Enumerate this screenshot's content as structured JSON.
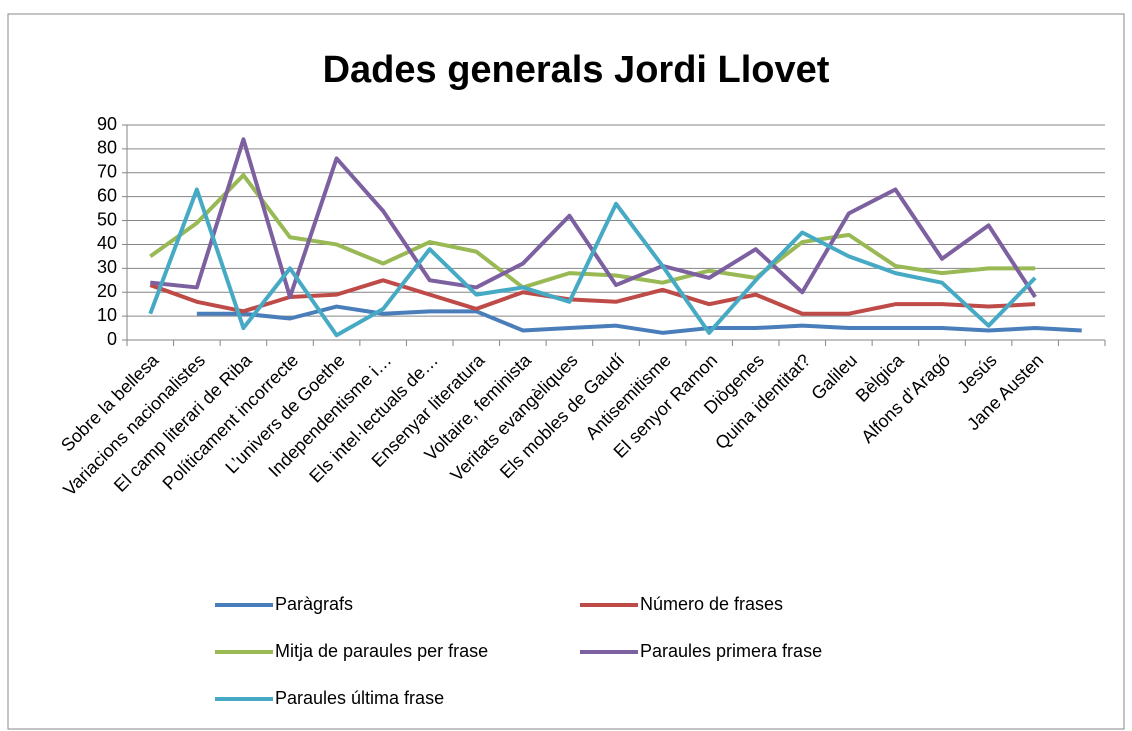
{
  "chart_data": {
    "type": "line",
    "title": "Dades generals Jordi Llovet",
    "categories": [
      "Sobre la bellesa",
      "Variacions nacionalistes",
      "El camp literari de Riba",
      "Políticament incorrecte",
      "L’univers de Goethe",
      "Independentisme i…",
      "Els intel·lectuals de…",
      "Ensenyar literatura",
      "Voltaire, feminista",
      "Veritats evangèliques",
      "Els mobles de Gaudí",
      "Antisemitisme",
      "El senyor Ramon",
      "Diògenes",
      "Quina identitat?",
      "Galileu",
      "Bèlgica",
      "Alfons d’Aragó",
      "Jesús",
      "Jane Austen",
      null
    ],
    "series": [
      {
        "name": "Paràgrafs",
        "color": "#4a7ebb",
        "values": [
          null,
          11,
          11,
          9,
          14,
          11,
          12,
          12,
          4,
          5,
          6,
          3,
          5,
          5,
          6,
          5,
          5,
          5,
          4,
          5,
          4
        ]
      },
      {
        "name": "Número de  frases",
        "color": "#be4b48",
        "values": [
          23,
          16,
          12,
          18,
          19,
          25,
          19,
          13,
          20,
          17,
          16,
          21,
          15,
          19,
          11,
          11,
          15,
          15,
          14,
          15,
          null
        ]
      },
      {
        "name": "Mitja de paraules   per frase",
        "color": "#98b954",
        "values": [
          35,
          49,
          69,
          43,
          40,
          32,
          41,
          37,
          22,
          28,
          27,
          24,
          29,
          26,
          41,
          44,
          31,
          28,
          30,
          30,
          null
        ]
      },
      {
        "name": "Paraules primera frase",
        "color": "#7d60a0",
        "values": [
          24,
          22,
          84,
          18,
          76,
          54,
          25,
          22,
          32,
          52,
          23,
          31,
          26,
          38,
          20,
          53,
          63,
          34,
          48,
          18,
          null
        ]
      },
      {
        "name": "Paraules última frase",
        "color": "#46aac5",
        "values": [
          11,
          63,
          5,
          30,
          2,
          13,
          38,
          19,
          22,
          16,
          57,
          31,
          3,
          25,
          45,
          35,
          28,
          24,
          6,
          26,
          null
        ]
      }
    ],
    "ylim": [
      0,
      90
    ],
    "yticks": [
      0,
      10,
      20,
      30,
      40,
      50,
      60,
      70,
      80,
      90
    ],
    "grid": true,
    "legend": "bottom"
  }
}
